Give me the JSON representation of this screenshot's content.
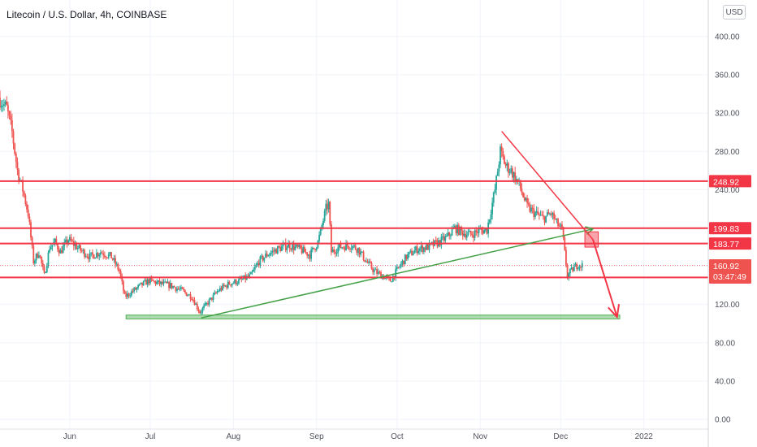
{
  "header": {
    "title": "Litecoin / U.S. Dollar, 4h, COINBASE",
    "currency_button": "USD"
  },
  "colors": {
    "resistance": "#f23645",
    "support_zone": "#4caf50",
    "trend_line": "#43a047",
    "candle_up": "#26a69a",
    "candle_down": "#ef5350"
  },
  "chart_data": {
    "type": "candlestick",
    "ylim": [
      0,
      420
    ],
    "x_domain": [
      "2021-05-06",
      "2022-01-25"
    ],
    "y_ticks": [
      "0.00",
      "40.00",
      "80.00",
      "120.00",
      "160.00",
      "200.00",
      "240.00",
      "280.00",
      "320.00",
      "360.00",
      "400.00"
    ],
    "x_ticks": [
      {
        "label": "Jun",
        "date": "2021-06-01"
      },
      {
        "label": "Jul",
        "date": "2021-07-01"
      },
      {
        "label": "Aug",
        "date": "2021-08-01"
      },
      {
        "label": "Sep",
        "date": "2021-09-01"
      },
      {
        "label": "Oct",
        "date": "2021-10-01"
      },
      {
        "label": "Nov",
        "date": "2021-11-01"
      },
      {
        "label": "Dec",
        "date": "2021-12-01"
      },
      {
        "label": "2022",
        "date": "2022-01-01"
      }
    ],
    "grid": true,
    "price_path": [
      [
        "2021-05-06",
        336
      ],
      [
        "2021-05-09",
        325
      ],
      [
        "2021-05-11",
        300
      ],
      [
        "2021-05-13",
        260
      ],
      [
        "2021-05-15",
        240
      ],
      [
        "2021-05-17",
        215
      ],
      [
        "2021-05-19",
        165
      ],
      [
        "2021-05-21",
        175
      ],
      [
        "2021-05-23",
        150
      ],
      [
        "2021-05-25",
        180
      ],
      [
        "2021-05-27",
        185
      ],
      [
        "2021-05-29",
        175
      ],
      [
        "2021-06-01",
        188
      ],
      [
        "2021-06-05",
        178
      ],
      [
        "2021-06-09",
        170
      ],
      [
        "2021-06-13",
        175
      ],
      [
        "2021-06-17",
        170
      ],
      [
        "2021-06-20",
        155
      ],
      [
        "2021-06-22",
        128
      ],
      [
        "2021-06-24",
        132
      ],
      [
        "2021-06-28",
        140
      ],
      [
        "2021-07-01",
        145
      ],
      [
        "2021-07-05",
        142
      ],
      [
        "2021-07-09",
        140
      ],
      [
        "2021-07-13",
        135
      ],
      [
        "2021-07-17",
        128
      ],
      [
        "2021-07-20",
        112
      ],
      [
        "2021-07-23",
        122
      ],
      [
        "2021-07-27",
        135
      ],
      [
        "2021-07-31",
        142
      ],
      [
        "2021-08-04",
        145
      ],
      [
        "2021-08-08",
        150
      ],
      [
        "2021-08-11",
        165
      ],
      [
        "2021-08-14",
        172
      ],
      [
        "2021-08-18",
        178
      ],
      [
        "2021-08-22",
        182
      ],
      [
        "2021-08-26",
        178
      ],
      [
        "2021-08-30",
        172
      ],
      [
        "2021-09-02",
        185
      ],
      [
        "2021-09-05",
        220
      ],
      [
        "2021-09-06",
        225
      ],
      [
        "2021-09-07",
        175
      ],
      [
        "2021-09-10",
        180
      ],
      [
        "2021-09-14",
        182
      ],
      [
        "2021-09-17",
        178
      ],
      [
        "2021-09-20",
        165
      ],
      [
        "2021-09-23",
        155
      ],
      [
        "2021-09-26",
        150
      ],
      [
        "2021-09-29",
        145
      ],
      [
        "2021-10-02",
        158
      ],
      [
        "2021-10-05",
        170
      ],
      [
        "2021-10-09",
        178
      ],
      [
        "2021-10-13",
        180
      ],
      [
        "2021-10-17",
        185
      ],
      [
        "2021-10-20",
        190
      ],
      [
        "2021-10-23",
        200
      ],
      [
        "2021-10-26",
        195
      ],
      [
        "2021-10-29",
        193
      ],
      [
        "2021-11-01",
        197
      ],
      [
        "2021-11-04",
        198
      ],
      [
        "2021-11-07",
        240
      ],
      [
        "2021-11-09",
        280
      ],
      [
        "2021-11-11",
        265
      ],
      [
        "2021-11-13",
        260
      ],
      [
        "2021-11-16",
        245
      ],
      [
        "2021-11-19",
        222
      ],
      [
        "2021-11-22",
        215
      ],
      [
        "2021-11-25",
        210
      ],
      [
        "2021-11-28",
        215
      ],
      [
        "2021-11-30",
        205
      ],
      [
        "2021-12-02",
        198
      ],
      [
        "2021-12-04",
        150
      ],
      [
        "2021-12-06",
        157
      ],
      [
        "2021-12-08",
        162
      ],
      [
        "2021-12-09",
        161
      ]
    ],
    "horizontal_levels": [
      {
        "value": 248.92,
        "label": "248.92"
      },
      {
        "value": 199.83,
        "label": "199.83"
      },
      {
        "value": 183.77,
        "label": "183.77"
      },
      {
        "value": 148.34,
        "label": "148.34"
      }
    ],
    "current_price": {
      "value": 160.92,
      "label": "160.92",
      "countdown": "03:47:49"
    },
    "support_zone": {
      "x_start": "2021-06-22",
      "x_end": "2021-12-23",
      "y_low": 105,
      "y_high": 109
    },
    "trend_lines": [
      {
        "name": "uptrend",
        "from": [
          "2021-07-20",
          106
        ],
        "to": [
          "2021-12-13",
          199
        ]
      },
      {
        "name": "downtrend",
        "from": [
          "2021-11-09",
          301
        ],
        "to": [
          "2021-12-13",
          188
        ]
      }
    ],
    "projection": {
      "from": [
        "2021-12-13",
        188
      ],
      "to": [
        "2021-12-22",
        107
      ]
    },
    "highlight_box": {
      "x_start": "2021-12-10",
      "x_end": "2021-12-15",
      "y_low": 180,
      "y_high": 196
    }
  }
}
